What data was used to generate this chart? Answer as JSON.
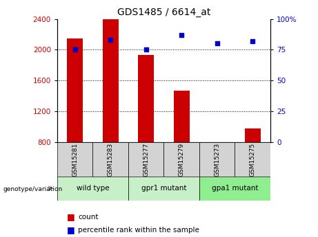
{
  "title": "GDS1485 / 6614_at",
  "samples": [
    "GSM15281",
    "GSM15283",
    "GSM15277",
    "GSM15279",
    "GSM15273",
    "GSM15275"
  ],
  "counts": [
    2150,
    2400,
    1930,
    1470,
    780,
    980
  ],
  "percentiles": [
    75,
    83,
    75,
    87,
    80,
    82
  ],
  "group_configs": [
    {
      "label": "wild type",
      "start": 0,
      "end": 1,
      "color": "#c8f0c8"
    },
    {
      "label": "gpr1 mutant",
      "start": 2,
      "end": 3,
      "color": "#c8f0c8"
    },
    {
      "label": "gpa1 mutant",
      "start": 4,
      "end": 5,
      "color": "#90ee90"
    }
  ],
  "ylim_left": [
    800,
    2400
  ],
  "ylim_right": [
    0,
    100
  ],
  "yticks_left": [
    800,
    1200,
    1600,
    2000,
    2400
  ],
  "yticks_right": [
    0,
    25,
    50,
    75,
    100
  ],
  "ytick_labels_right": [
    "0",
    "25",
    "50",
    "75",
    "100%"
  ],
  "bar_color": "#cc0000",
  "dot_color": "#0000cc",
  "sample_box_color": "#d3d3d3",
  "legend_count_color": "#cc0000",
  "legend_pct_color": "#0000cc"
}
